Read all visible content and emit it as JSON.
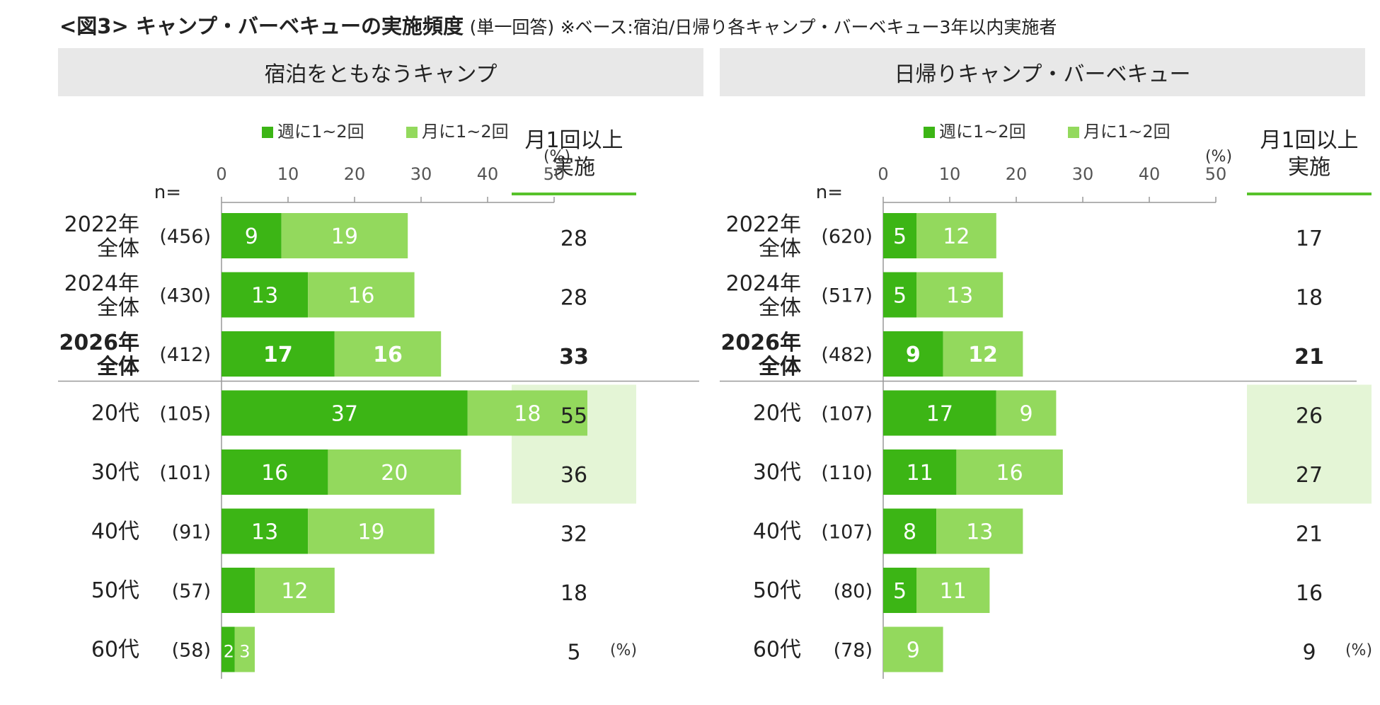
{
  "title": {
    "main": "<図3> キャンプ・バーベキューの実施頻度",
    "answer_type": "(単一回答)",
    "base_note": "※ベース:宿泊/日帰り各キャンプ・バーベキュー3年以内実施者"
  },
  "colors": {
    "weekly": "#3cb515",
    "monthly": "#93d95d",
    "highlight": "#e4f5d6",
    "header_bg": "#e8e8e8",
    "accent_line": "#57c22a"
  },
  "labels": {
    "n_label": "n=",
    "percent_unit": "(%)",
    "summary_header_line1": "月1回以上",
    "summary_header_line2": "実施"
  },
  "chart_data": [
    {
      "type": "bar",
      "orientation": "horizontal",
      "stacked": true,
      "title": "宿泊をともなうキャンプ",
      "xlim": [
        0,
        50
      ],
      "xticks": [
        0,
        10,
        20,
        30,
        40,
        50
      ],
      "xunit": "(%)",
      "legend": [
        "週に1~2回",
        "月に1~2回"
      ],
      "categories": [
        {
          "line1": "2022年",
          "line2": "全体",
          "n": "(456)",
          "bold": false
        },
        {
          "line1": "2024年",
          "line2": "全体",
          "n": "(430)",
          "bold": false
        },
        {
          "line1": "2026年",
          "line2": "全体",
          "n": "(412)",
          "bold": true
        },
        {
          "line1": "20代",
          "line2": "",
          "n": "(105)",
          "bold": false
        },
        {
          "line1": "30代",
          "line2": "",
          "n": "(101)",
          "bold": false
        },
        {
          "line1": "40代",
          "line2": "",
          "n": "(91)",
          "bold": false
        },
        {
          "line1": "50代",
          "line2": "",
          "n": "(57)",
          "bold": false
        },
        {
          "line1": "60代",
          "line2": "",
          "n": "(58)",
          "bold": false
        }
      ],
      "series": [
        {
          "name": "週に1~2回",
          "values": [
            9,
            13,
            17,
            37,
            16,
            13,
            5,
            2
          ],
          "labels": [
            "9",
            "13",
            "17",
            "37",
            "16",
            "13",
            "",
            "2"
          ]
        },
        {
          "name": "月に1~2回",
          "values": [
            19,
            16,
            16,
            18,
            20,
            19,
            12,
            3
          ],
          "labels": [
            "19",
            "16",
            "16",
            "18",
            "20",
            "19",
            "12",
            "3"
          ]
        }
      ],
      "summary": {
        "label": "月1回以上実施",
        "values": [
          "28",
          "28",
          "33",
          "55",
          "36",
          "32",
          "18",
          "5"
        ],
        "highlight": [
          false,
          false,
          false,
          true,
          true,
          false,
          false,
          false
        ]
      }
    },
    {
      "type": "bar",
      "orientation": "horizontal",
      "stacked": true,
      "title": "日帰りキャンプ・バーベキュー",
      "xlim": [
        0,
        50
      ],
      "xticks": [
        0,
        10,
        20,
        30,
        40,
        50
      ],
      "xunit": "(%)",
      "legend": [
        "週に1~2回",
        "月に1~2回"
      ],
      "categories": [
        {
          "line1": "2022年",
          "line2": "全体",
          "n": "(620)",
          "bold": false
        },
        {
          "line1": "2024年",
          "line2": "全体",
          "n": "(517)",
          "bold": false
        },
        {
          "line1": "2026年",
          "line2": "全体",
          "n": "(482)",
          "bold": true
        },
        {
          "line1": "20代",
          "line2": "",
          "n": "(107)",
          "bold": false
        },
        {
          "line1": "30代",
          "line2": "",
          "n": "(110)",
          "bold": false
        },
        {
          "line1": "40代",
          "line2": "",
          "n": "(107)",
          "bold": false
        },
        {
          "line1": "50代",
          "line2": "",
          "n": "(80)",
          "bold": false
        },
        {
          "line1": "60代",
          "line2": "",
          "n": "(78)",
          "bold": false
        }
      ],
      "series": [
        {
          "name": "週に1~2回",
          "values": [
            5,
            5,
            9,
            17,
            11,
            8,
            5,
            0
          ],
          "labels": [
            "5",
            "5",
            "9",
            "17",
            "11",
            "8",
            "5",
            ""
          ]
        },
        {
          "name": "月に1~2回",
          "values": [
            12,
            13,
            12,
            9,
            16,
            13,
            11,
            9
          ],
          "labels": [
            "12",
            "13",
            "12",
            "9",
            "16",
            "13",
            "11",
            "9"
          ]
        }
      ],
      "summary": {
        "label": "月1回以上実施",
        "values": [
          "17",
          "18",
          "21",
          "26",
          "27",
          "21",
          "16",
          "9"
        ],
        "highlight": [
          false,
          false,
          false,
          true,
          true,
          false,
          false,
          false
        ]
      }
    }
  ]
}
